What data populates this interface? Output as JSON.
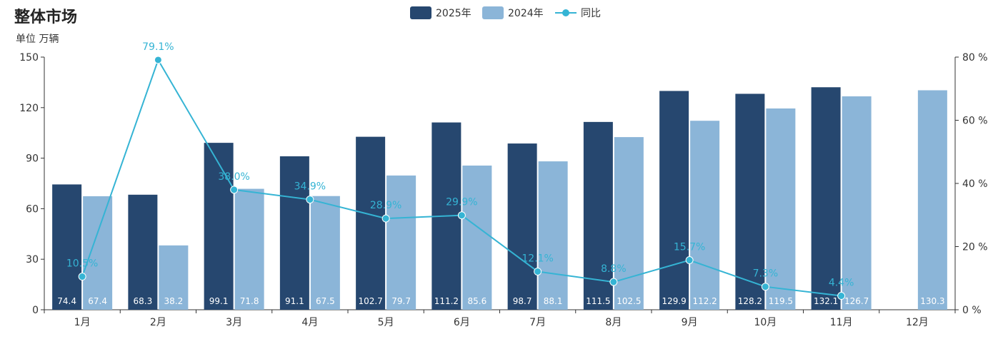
{
  "header": {
    "title": "整体市场",
    "unit": "单位 万辆"
  },
  "colors": {
    "series_2025": "#26476f",
    "series_2024": "#8bb5d8",
    "yoy": "#35b4d4",
    "axis": "#333333"
  },
  "chart_data": {
    "type": "bar",
    "title": "整体市场",
    "ylabel": "单位 万辆",
    "categories": [
      "1月",
      "2月",
      "3月",
      "4月",
      "5月",
      "6月",
      "7月",
      "8月",
      "9月",
      "10月",
      "11月",
      "12月"
    ],
    "series": [
      {
        "name": "2025年",
        "values": [
          74.4,
          68.3,
          99.1,
          91.1,
          102.7,
          111.2,
          98.7,
          111.5,
          129.9,
          128.2,
          132.1,
          null
        ],
        "labels": [
          "74.4",
          "68.3",
          "99.1",
          "91.1",
          "102.7",
          "111.2",
          "98.7",
          "111.5",
          "129.9",
          "128.2",
          "132.1",
          ""
        ]
      },
      {
        "name": "2024年",
        "values": [
          67.4,
          38.2,
          71.8,
          67.5,
          79.7,
          85.6,
          88.1,
          102.5,
          112.2,
          119.5,
          126.7,
          130.3
        ],
        "labels": [
          "67.4",
          "38.2",
          "71.8",
          "67.5",
          "79.7",
          "85.6",
          "88.1",
          "102.5",
          "112.2",
          "119.5",
          "126.7",
          "130.3"
        ]
      },
      {
        "name": "同比",
        "type": "line",
        "axis": "right",
        "values": [
          10.5,
          79.1,
          38.0,
          34.9,
          28.9,
          29.9,
          12.1,
          8.8,
          15.7,
          7.3,
          4.4,
          null
        ],
        "labels": [
          "10.5%",
          "79.1%",
          "38.0%",
          "34.9%",
          "28.9%",
          "29.9%",
          "12.1%",
          "8.8%",
          "15.7%",
          "7.3%",
          "4.4%",
          ""
        ]
      }
    ],
    "ylim": [
      0,
      150
    ],
    "y_ticks": [
      "0",
      "30",
      "60",
      "90",
      "120",
      "150"
    ],
    "y_tick_values": [
      0,
      30,
      60,
      90,
      120,
      150
    ],
    "y2lim": [
      0,
      80
    ],
    "y2_ticks": [
      "0 %",
      "20 %",
      "40 %",
      "60 %",
      "80 %"
    ],
    "y2_tick_values": [
      0,
      20,
      40,
      60,
      80
    ],
    "grid": false,
    "legend": "top-center"
  }
}
